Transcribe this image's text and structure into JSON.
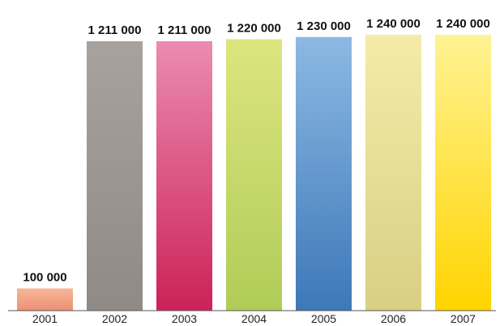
{
  "chart_data": {
    "type": "bar",
    "title": "",
    "xlabel": "",
    "ylabel": "",
    "categories": [
      "2001",
      "2002",
      "2003",
      "2004",
      "2005",
      "2006",
      "2007"
    ],
    "values": [
      100000,
      1211000,
      1211000,
      1220000,
      1230000,
      1240000,
      1240000
    ],
    "value_labels": [
      "100 000",
      "1 211 000",
      "1 211 000",
      "1 220 000",
      "1 230 000",
      "1 240 000",
      "1 240 000"
    ],
    "ylim": [
      0,
      1240000
    ],
    "grid": false,
    "legend": "none",
    "bar_colors": [
      [
        "#f6b79a",
        "#ee8f74"
      ],
      [
        "#a7a29d",
        "#8f8a86"
      ],
      [
        "#eb8bb0",
        "#cc2258"
      ],
      [
        "#dde57f",
        "#b0cc58"
      ],
      [
        "#8cb9e3",
        "#3d78b8"
      ],
      [
        "#f4eba8",
        "#d8cf84"
      ],
      [
        "#fff393",
        "#ffd400"
      ]
    ]
  }
}
